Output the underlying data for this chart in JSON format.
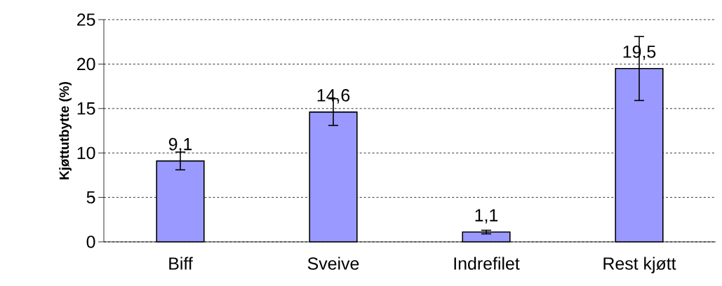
{
  "chart_data": {
    "type": "bar",
    "ylabel": "Kjøttutbytte (%)",
    "categories": [
      "Biff",
      "Sveive",
      "Indrefilet",
      "Rest kjøtt"
    ],
    "values": [
      9.1,
      14.6,
      1.1,
      19.5
    ],
    "errors": [
      1.0,
      1.5,
      0.2,
      3.6
    ],
    "value_labels": [
      "9,1",
      "14,6",
      "1,1",
      "19,5"
    ],
    "color": "#9999ff",
    "ylim": [
      0,
      25
    ],
    "yticks": [
      0,
      5,
      10,
      15,
      20,
      25
    ],
    "grid": "y"
  }
}
